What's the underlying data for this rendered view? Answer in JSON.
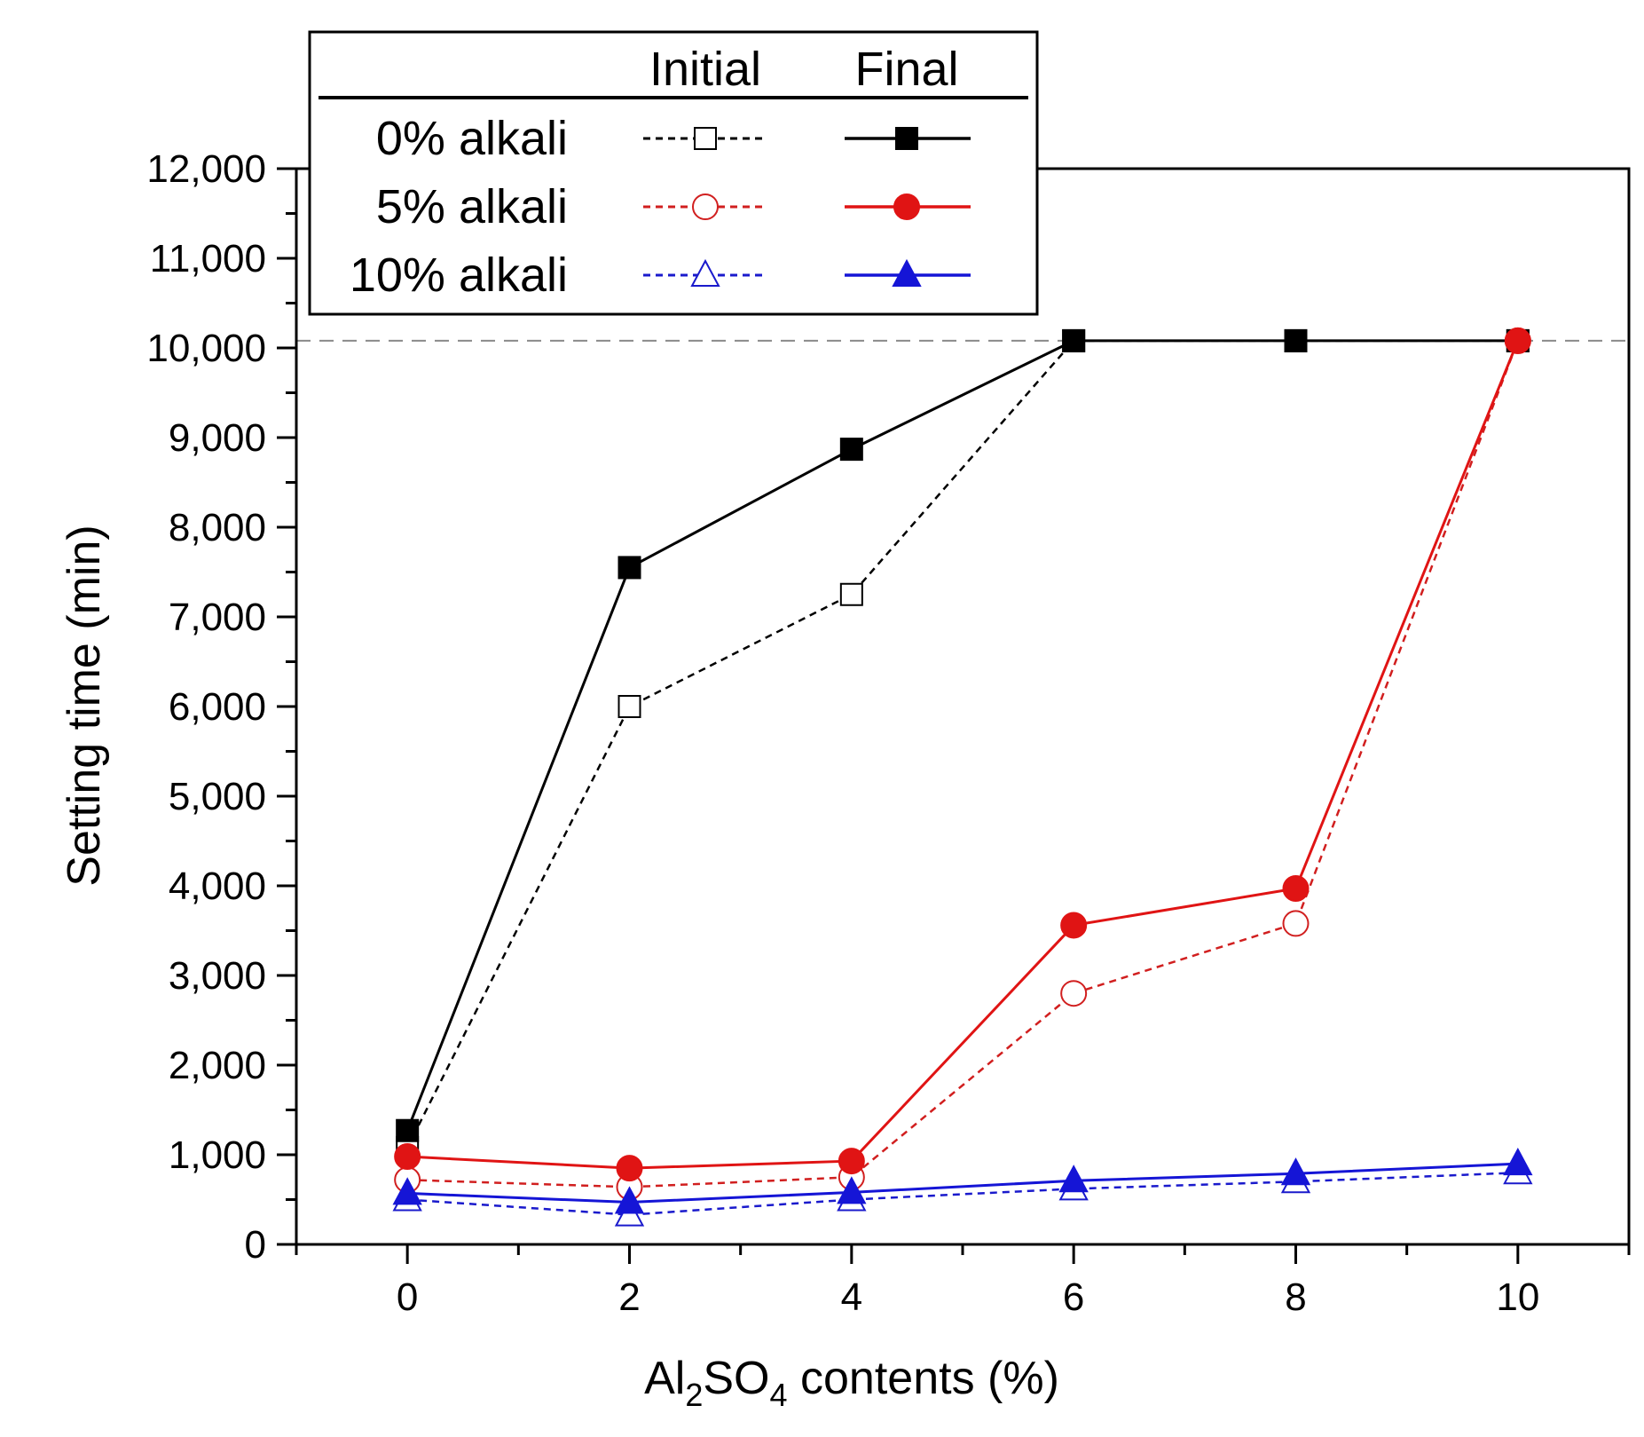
{
  "chart_data": {
    "type": "line",
    "xlabel": "Al2SO4 contents (%)",
    "xlabel_parts": {
      "a": "Al",
      "sub1": "2",
      "b": "SO",
      "sub2": "4",
      "c": " contents (%)"
    },
    "ylabel": "Setting time (min)",
    "xlim": [
      -1,
      11
    ],
    "ylim": [
      0,
      12000
    ],
    "xticks": [
      0,
      2,
      4,
      6,
      8,
      10
    ],
    "xtick_labels": [
      "0",
      "2",
      "4",
      "6",
      "8",
      "10"
    ],
    "yticks": [
      0,
      1000,
      2000,
      3000,
      4000,
      5000,
      6000,
      7000,
      8000,
      9000,
      10000,
      11000,
      12000
    ],
    "ytick_labels": [
      "0",
      "1,000",
      "2,000",
      "3,000",
      "4,000",
      "5,000",
      "6,000",
      "7,000",
      "8,000",
      "9,000",
      "10,000",
      "11,000",
      "12,000"
    ],
    "reference_line": {
      "y": 10080,
      "style": "dashed",
      "color": "#8a8a8a"
    },
    "x": [
      0,
      2,
      4,
      6,
      8,
      10
    ],
    "series": [
      {
        "name": "0% alkali Initial",
        "group": "0% alkali",
        "kind": "Initial",
        "color": "#000000",
        "marker": "square",
        "filled": false,
        "dashed": true,
        "values": [
          1080,
          6000,
          7250,
          10080,
          10080,
          10080
        ]
      },
      {
        "name": "0% alkali Final",
        "group": "0% alkali",
        "kind": "Final",
        "color": "#000000",
        "marker": "square",
        "filled": true,
        "dashed": false,
        "values": [
          1270,
          7550,
          8870,
          10080,
          10080,
          10080
        ]
      },
      {
        "name": "5% alkali Initial",
        "group": "5% alkali",
        "kind": "Initial",
        "color": "#d11f1f",
        "marker": "circle",
        "filled": false,
        "dashed": true,
        "values": [
          720,
          640,
          750,
          2800,
          3580,
          10080
        ]
      },
      {
        "name": "5% alkali Final",
        "group": "5% alkali",
        "kind": "Final",
        "color": "#e01414",
        "marker": "circle",
        "filled": true,
        "dashed": false,
        "values": [
          980,
          850,
          930,
          3560,
          3970,
          10080
        ]
      },
      {
        "name": "10% alkali Initial",
        "group": "10% alkali",
        "kind": "Initial",
        "color": "#1a1acc",
        "marker": "triangle",
        "filled": false,
        "dashed": true,
        "values": [
          500,
          330,
          500,
          620,
          700,
          800
        ]
      },
      {
        "name": "10% alkali Final",
        "group": "10% alkali",
        "kind": "Final",
        "color": "#1515d6",
        "marker": "triangle",
        "filled": true,
        "dashed": false,
        "values": [
          570,
          470,
          580,
          710,
          790,
          900
        ]
      }
    ],
    "legend": {
      "placement": "top-left, overlapping top of plot",
      "headers": [
        "Initial",
        "Final"
      ],
      "rows": [
        "0% alkali",
        "5% alkali",
        "10% alkali"
      ]
    }
  }
}
